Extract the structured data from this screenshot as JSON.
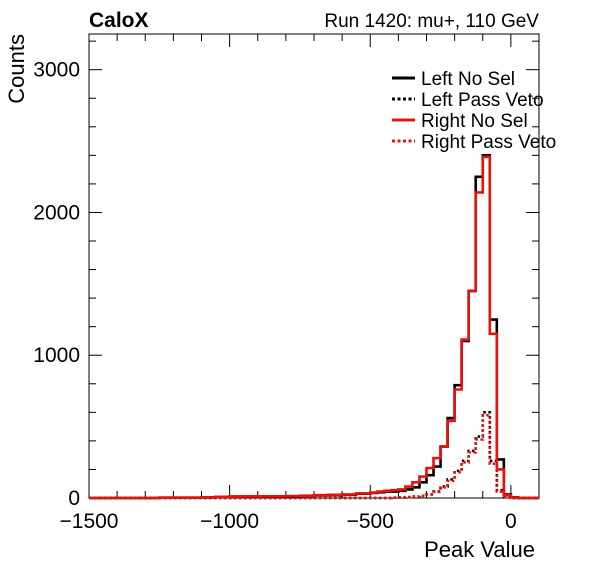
{
  "header": {
    "experiment": "CaloX",
    "run_info": "Run 1420: mu+, 110 GeV"
  },
  "chart_data": {
    "type": "line",
    "title": "",
    "xlabel": "Peak Value",
    "ylabel": "Counts",
    "xlim": [
      -1500,
      100
    ],
    "ylim": [
      0,
      3250
    ],
    "x_ticks": [
      -1500,
      -1000,
      -500,
      0
    ],
    "x_tick_labels": [
      "−1500",
      "−1000",
      "−500",
      "0"
    ],
    "y_ticks": [
      0,
      1000,
      2000,
      3000
    ],
    "y_tick_labels": [
      "0",
      "1000",
      "2000",
      "3000"
    ],
    "legend_position": "top-right",
    "bin_edges": [
      -1500,
      -1450,
      -1400,
      -1350,
      -1300,
      -1250,
      -1200,
      -1150,
      -1100,
      -1050,
      -1000,
      -950,
      -900,
      -850,
      -800,
      -750,
      -700,
      -650,
      -600,
      -550,
      -500,
      -475,
      -450,
      -425,
      -400,
      -375,
      -350,
      -325,
      -300,
      -275,
      -250,
      -225,
      -200,
      -175,
      -150,
      -125,
      -100,
      -75,
      -50,
      -25,
      0,
      25,
      50,
      75,
      100
    ],
    "series": [
      {
        "name": "Left No Sel",
        "color": "#000000",
        "dash": "solid",
        "values": [
          0,
          0,
          0,
          0,
          0,
          2,
          2,
          2,
          4,
          8,
          10,
          12,
          12,
          10,
          12,
          14,
          18,
          20,
          22,
          30,
          35,
          40,
          45,
          45,
          50,
          60,
          75,
          110,
          160,
          220,
          360,
          560,
          790,
          1100,
          1450,
          2250,
          2400,
          1250,
          270,
          25,
          5,
          0,
          0,
          0
        ]
      },
      {
        "name": "Left Pass Veto",
        "color": "#000000",
        "dash": "dotted",
        "values": [
          0,
          0,
          0,
          0,
          0,
          0,
          0,
          0,
          0,
          0,
          0,
          0,
          0,
          0,
          0,
          0,
          0,
          0,
          0,
          0,
          0,
          0,
          0,
          2,
          4,
          6,
          10,
          15,
          25,
          45,
          80,
          130,
          190,
          260,
          330,
          430,
          600,
          260,
          55,
          6,
          0,
          0,
          0,
          0
        ]
      },
      {
        "name": "Right No Sel",
        "color": "#e8120c",
        "dash": "solid",
        "values": [
          0,
          0,
          0,
          0,
          0,
          2,
          2,
          2,
          4,
          8,
          10,
          12,
          12,
          12,
          14,
          16,
          20,
          22,
          25,
          32,
          38,
          45,
          50,
          55,
          60,
          80,
          110,
          150,
          210,
          280,
          360,
          540,
          760,
          1110,
          1450,
          2140,
          2390,
          1150,
          200,
          20,
          4,
          0,
          0,
          0
        ]
      },
      {
        "name": "Right Pass Veto",
        "color": "#e8120c",
        "dash": "dotted",
        "values": [
          0,
          0,
          0,
          0,
          0,
          0,
          0,
          0,
          0,
          0,
          0,
          0,
          0,
          0,
          0,
          0,
          0,
          0,
          0,
          0,
          0,
          0,
          0,
          2,
          4,
          6,
          10,
          15,
          25,
          42,
          75,
          120,
          180,
          250,
          320,
          410,
          580,
          240,
          45,
          5,
          0,
          0,
          0,
          0
        ]
      }
    ]
  }
}
